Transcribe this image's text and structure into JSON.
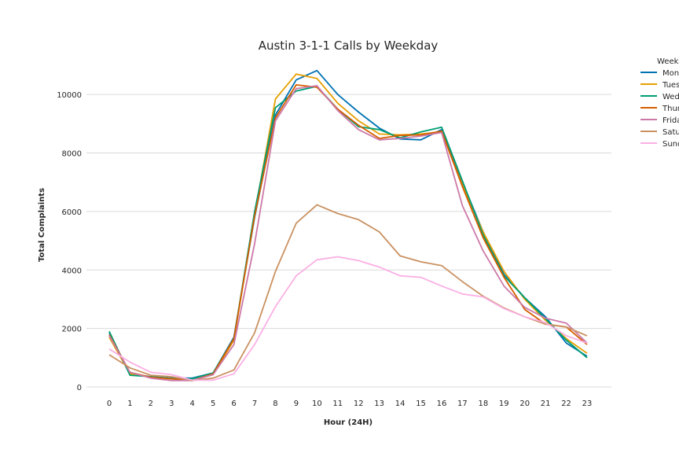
{
  "chart_data": {
    "type": "line",
    "title": "Austin 3-1-1 Calls by Weekday",
    "xlabel": "Hour (24H)",
    "ylabel": "Total Complaints",
    "x": [
      0,
      1,
      2,
      3,
      4,
      5,
      6,
      7,
      8,
      9,
      10,
      11,
      12,
      13,
      14,
      15,
      16,
      17,
      18,
      19,
      20,
      21,
      22,
      23
    ],
    "xlim": [
      0,
      23
    ],
    "ylim": [
      0,
      11000
    ],
    "yticks": [
      0,
      2000,
      4000,
      6000,
      8000,
      10000
    ],
    "grid": "horizontal",
    "legend": {
      "title": "Weekday",
      "placement": "right"
    },
    "series": [
      {
        "name": "Monday",
        "color": "#0072b2",
        "values": [
          1850,
          450,
          350,
          300,
          300,
          480,
          1700,
          5800,
          9300,
          10500,
          10820,
          10000,
          9400,
          8850,
          8480,
          8450,
          8800,
          7000,
          5300,
          3850,
          3050,
          2400,
          1500,
          1050
        ]
      },
      {
        "name": "Tuesday",
        "color": "#e69f00",
        "values": [
          1700,
          450,
          330,
          280,
          220,
          420,
          1600,
          5900,
          9850,
          10700,
          10550,
          9700,
          9100,
          8650,
          8620,
          8650,
          8720,
          6900,
          5300,
          3950,
          3000,
          2280,
          1650,
          1150
        ]
      },
      {
        "name": "Wednesday",
        "color": "#009e73",
        "values": [
          1900,
          400,
          350,
          290,
          280,
          480,
          1650,
          6000,
          9550,
          10120,
          10280,
          9500,
          8900,
          8800,
          8520,
          8720,
          8880,
          7050,
          5200,
          3800,
          3050,
          2330,
          1600,
          1000
        ]
      },
      {
        "name": "Thursday",
        "color": "#d55e00",
        "values": [
          1780,
          500,
          330,
          280,
          220,
          450,
          1650,
          5850,
          9200,
          10330,
          10250,
          9500,
          8950,
          8500,
          8600,
          8620,
          8750,
          6850,
          5100,
          3750,
          2650,
          2150,
          2050,
          1450
        ]
      },
      {
        "name": "Friday",
        "color": "#cc79a7",
        "values": [
          1750,
          500,
          300,
          220,
          220,
          420,
          1450,
          4900,
          9100,
          10200,
          10300,
          9450,
          8800,
          8450,
          8500,
          8580,
          8700,
          6200,
          4650,
          3450,
          2720,
          2350,
          2180,
          1500
        ]
      },
      {
        "name": "Saturday",
        "color": "#ca9161",
        "values": [
          1100,
          650,
          400,
          350,
          220,
          300,
          580,
          1850,
          3950,
          5600,
          6230,
          5930,
          5720,
          5300,
          4480,
          4280,
          4150,
          3600,
          3100,
          2700,
          2400,
          2150,
          2050,
          1750
        ]
      },
      {
        "name": "Sunday",
        "color": "#fbafe4",
        "values": [
          1300,
          850,
          500,
          420,
          230,
          230,
          450,
          1450,
          2750,
          3800,
          4350,
          4450,
          4320,
          4100,
          3800,
          3750,
          3450,
          3180,
          3080,
          2680,
          2400,
          2200,
          1750,
          1500
        ]
      }
    ]
  }
}
